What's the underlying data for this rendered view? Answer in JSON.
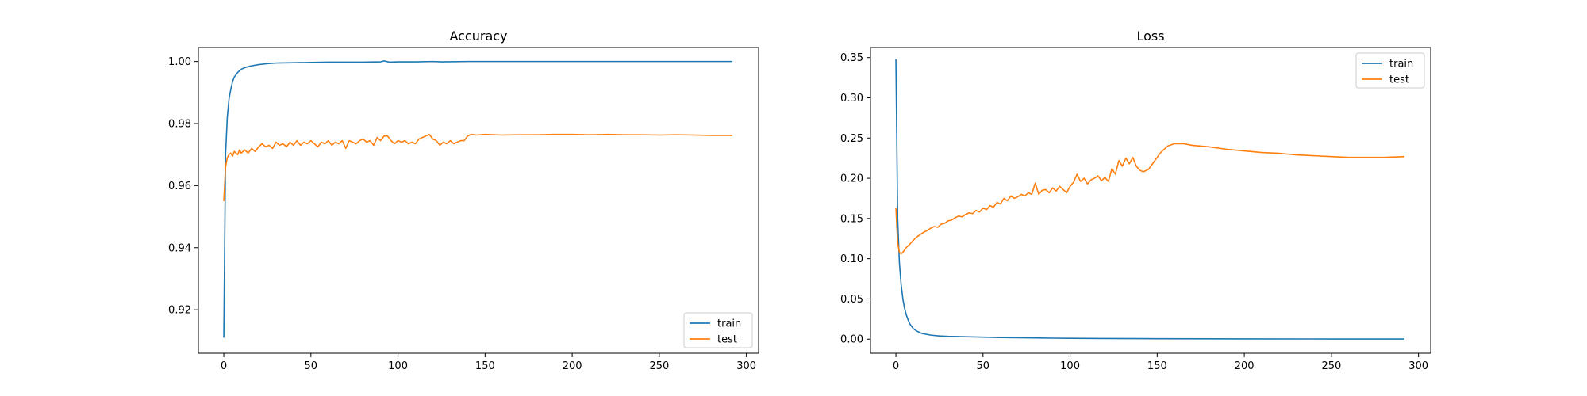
{
  "chart_data": [
    {
      "type": "line",
      "title": "Accuracy",
      "xlabel": "",
      "ylabel": "",
      "xlim": [
        -14.6,
        307
      ],
      "ylim": [
        0.906,
        1.0045
      ],
      "xticks": [
        0,
        50,
        100,
        150,
        200,
        250,
        300
      ],
      "yticks": [
        0.92,
        0.94,
        0.96,
        0.98,
        1.0
      ],
      "ytick_labels": [
        "0.92",
        "0.94",
        "0.96",
        "0.98",
        "1.00"
      ],
      "legend": {
        "position": "lower-right",
        "entries": [
          "train",
          "test"
        ]
      },
      "grid": false,
      "series": [
        {
          "name": "train",
          "color": "#1f77b4",
          "x": [
            0,
            1,
            2,
            3,
            4,
            5,
            6,
            8,
            10,
            12,
            15,
            20,
            25,
            30,
            40,
            50,
            60,
            70,
            80,
            90,
            92,
            95,
            100,
            110,
            120,
            125,
            140,
            150,
            200,
            250,
            292
          ],
          "y": [
            0.911,
            0.97,
            0.982,
            0.988,
            0.991,
            0.9935,
            0.995,
            0.9965,
            0.9975,
            0.998,
            0.9985,
            0.999,
            0.9993,
            0.9995,
            0.9996,
            0.9997,
            0.9998,
            0.9998,
            0.9998,
            0.9999,
            1.0002,
            0.9998,
            0.9999,
            0.9999,
            1.0,
            0.9999,
            1.0,
            1.0,
            1.0,
            1.0,
            1.0
          ]
        },
        {
          "name": "test",
          "color": "#ff7f0e",
          "x": [
            0,
            1,
            2,
            3,
            4,
            5,
            6,
            7,
            8,
            9,
            10,
            12,
            14,
            16,
            18,
            20,
            22,
            24,
            26,
            28,
            30,
            32,
            34,
            36,
            38,
            40,
            42,
            44,
            46,
            48,
            50,
            52,
            54,
            56,
            58,
            60,
            62,
            64,
            66,
            68,
            70,
            72,
            74,
            76,
            78,
            80,
            82,
            84,
            86,
            88,
            90,
            92,
            94,
            96,
            98,
            100,
            102,
            104,
            106,
            108,
            110,
            112,
            114,
            116,
            118,
            120,
            122,
            124,
            126,
            128,
            130,
            132,
            134,
            136,
            138,
            140,
            142,
            145,
            150,
            160,
            170,
            180,
            190,
            200,
            210,
            220,
            230,
            240,
            250,
            260,
            270,
            280,
            292
          ],
          "y": [
            0.955,
            0.966,
            0.969,
            0.97,
            0.9705,
            0.9695,
            0.971,
            0.9705,
            0.97,
            0.9715,
            0.9705,
            0.9715,
            0.9705,
            0.972,
            0.971,
            0.9725,
            0.9735,
            0.9725,
            0.973,
            0.972,
            0.974,
            0.973,
            0.9735,
            0.9725,
            0.974,
            0.973,
            0.9745,
            0.973,
            0.974,
            0.9735,
            0.9745,
            0.9735,
            0.9725,
            0.974,
            0.9735,
            0.9745,
            0.973,
            0.974,
            0.9735,
            0.9745,
            0.972,
            0.9745,
            0.974,
            0.9735,
            0.9745,
            0.975,
            0.974,
            0.9745,
            0.973,
            0.9755,
            0.9745,
            0.976,
            0.976,
            0.9745,
            0.9735,
            0.9745,
            0.974,
            0.9745,
            0.9735,
            0.974,
            0.9735,
            0.975,
            0.9755,
            0.976,
            0.9765,
            0.975,
            0.9745,
            0.973,
            0.974,
            0.9735,
            0.9745,
            0.9735,
            0.974,
            0.9745,
            0.9745,
            0.976,
            0.9765,
            0.9763,
            0.9765,
            0.9763,
            0.9764,
            0.9764,
            0.9765,
            0.9765,
            0.9764,
            0.9765,
            0.9764,
            0.9764,
            0.9763,
            0.9764,
            0.9763,
            0.9762,
            0.9762
          ]
        }
      ]
    },
    {
      "type": "line",
      "title": "Loss",
      "xlabel": "",
      "ylabel": "",
      "xlim": [
        -14.6,
        307
      ],
      "ylim": [
        -0.0175,
        0.3625
      ],
      "xticks": [
        0,
        50,
        100,
        150,
        200,
        250,
        300
      ],
      "yticks": [
        0.0,
        0.05,
        0.1,
        0.15,
        0.2,
        0.25,
        0.3,
        0.35
      ],
      "ytick_labels": [
        "0.00",
        "0.05",
        "0.10",
        "0.15",
        "0.20",
        "0.25",
        "0.30",
        "0.35"
      ],
      "legend": {
        "position": "upper-right",
        "entries": [
          "train",
          "test"
        ]
      },
      "grid": false,
      "series": [
        {
          "name": "train",
          "color": "#1f77b4",
          "x": [
            0,
            1,
            2,
            3,
            4,
            5,
            6,
            7,
            8,
            10,
            12,
            15,
            20,
            25,
            30,
            40,
            50,
            60,
            70,
            80,
            90,
            100,
            120,
            140,
            150,
            200,
            250,
            292
          ],
          "y": [
            0.348,
            0.15,
            0.095,
            0.068,
            0.05,
            0.038,
            0.03,
            0.024,
            0.019,
            0.013,
            0.01,
            0.007,
            0.005,
            0.004,
            0.0035,
            0.003,
            0.0025,
            0.002,
            0.0018,
            0.0015,
            0.0012,
            0.001,
            0.0008,
            0.0006,
            0.0005,
            0.0003,
            0.0002,
            0.0002
          ]
        },
        {
          "name": "test",
          "color": "#ff7f0e",
          "x": [
            0,
            1,
            2,
            3,
            4,
            5,
            6,
            8,
            10,
            12,
            14,
            16,
            18,
            20,
            22,
            24,
            26,
            28,
            30,
            32,
            34,
            36,
            38,
            40,
            42,
            44,
            46,
            48,
            50,
            52,
            54,
            56,
            58,
            60,
            62,
            64,
            66,
            68,
            70,
            72,
            74,
            76,
            78,
            80,
            82,
            84,
            86,
            88,
            90,
            92,
            94,
            96,
            98,
            100,
            102,
            104,
            106,
            108,
            110,
            112,
            114,
            116,
            118,
            120,
            122,
            124,
            126,
            128,
            130,
            132,
            134,
            136,
            138,
            140,
            142,
            145,
            148,
            152,
            156,
            160,
            165,
            170,
            180,
            190,
            200,
            210,
            220,
            230,
            240,
            250,
            260,
            270,
            280,
            292
          ],
          "y": [
            0.163,
            0.12,
            0.108,
            0.106,
            0.108,
            0.111,
            0.114,
            0.118,
            0.123,
            0.127,
            0.13,
            0.133,
            0.135,
            0.138,
            0.14,
            0.139,
            0.143,
            0.144,
            0.147,
            0.148,
            0.151,
            0.153,
            0.152,
            0.155,
            0.157,
            0.156,
            0.16,
            0.158,
            0.163,
            0.161,
            0.166,
            0.164,
            0.17,
            0.168,
            0.175,
            0.172,
            0.178,
            0.175,
            0.177,
            0.18,
            0.178,
            0.182,
            0.18,
            0.194,
            0.18,
            0.185,
            0.186,
            0.182,
            0.188,
            0.184,
            0.19,
            0.186,
            0.182,
            0.19,
            0.195,
            0.205,
            0.196,
            0.2,
            0.193,
            0.198,
            0.2,
            0.203,
            0.197,
            0.201,
            0.196,
            0.212,
            0.205,
            0.222,
            0.215,
            0.225,
            0.218,
            0.226,
            0.215,
            0.21,
            0.208,
            0.211,
            0.22,
            0.232,
            0.24,
            0.243,
            0.243,
            0.241,
            0.239,
            0.236,
            0.234,
            0.232,
            0.231,
            0.229,
            0.228,
            0.227,
            0.226,
            0.226,
            0.226,
            0.227
          ]
        }
      ]
    }
  ]
}
